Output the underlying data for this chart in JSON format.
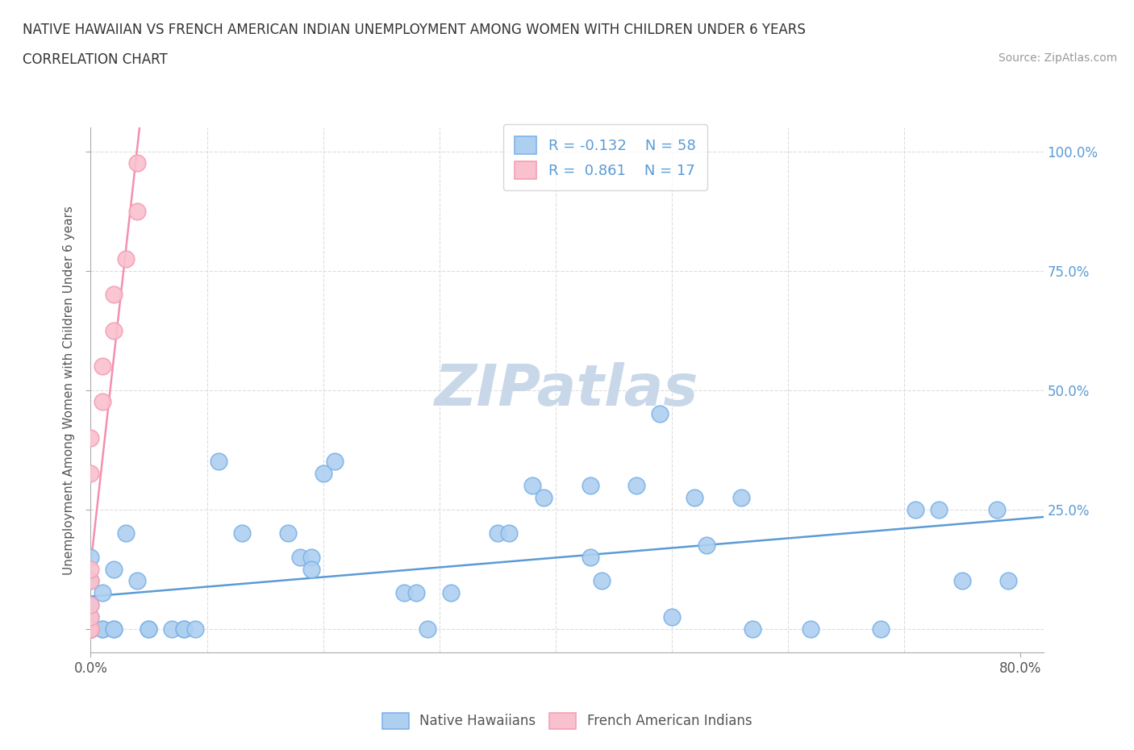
{
  "title_line1": "NATIVE HAWAIIAN VS FRENCH AMERICAN INDIAN UNEMPLOYMENT AMONG WOMEN WITH CHILDREN UNDER 6 YEARS",
  "title_line2": "CORRELATION CHART",
  "source_text": "Source: ZipAtlas.com",
  "ylabel": "Unemployment Among Women with Children Under 6 years",
  "watermark": "ZIPatlas",
  "blue_color": "#7EB3E8",
  "pink_color": "#F4A0B5",
  "blue_fill": "#AED0F0",
  "pink_fill": "#F9C0CE",
  "blue_r": -0.132,
  "blue_n": 58,
  "pink_r": 0.861,
  "pink_n": 17,
  "blue_scatter_x": [
    0.0,
    0.0,
    0.0,
    0.0,
    0.0,
    0.0,
    0.0,
    0.0,
    0.0,
    0.0,
    0.0,
    0.01,
    0.01,
    0.01,
    0.02,
    0.02,
    0.02,
    0.03,
    0.04,
    0.05,
    0.05,
    0.07,
    0.08,
    0.08,
    0.09,
    0.11,
    0.13,
    0.17,
    0.18,
    0.19,
    0.19,
    0.2,
    0.21,
    0.27,
    0.28,
    0.29,
    0.31,
    0.35,
    0.36,
    0.38,
    0.39,
    0.43,
    0.43,
    0.44,
    0.47,
    0.49,
    0.5,
    0.52,
    0.53,
    0.56,
    0.57,
    0.62,
    0.68,
    0.71,
    0.73,
    0.75,
    0.78,
    0.79
  ],
  "blue_scatter_y": [
    0.0,
    0.0,
    0.0,
    0.0,
    0.0,
    0.0,
    0.0,
    0.01,
    0.02,
    0.04,
    0.06,
    0.0,
    0.0,
    0.03,
    0.0,
    0.0,
    0.05,
    0.08,
    0.04,
    0.0,
    0.0,
    0.0,
    0.0,
    0.0,
    0.0,
    0.14,
    0.08,
    0.08,
    0.06,
    0.06,
    0.05,
    0.13,
    0.14,
    0.03,
    0.03,
    0.0,
    0.03,
    0.08,
    0.08,
    0.12,
    0.11,
    0.06,
    0.12,
    0.04,
    0.12,
    0.18,
    0.01,
    0.11,
    0.07,
    0.11,
    0.0,
    0.0,
    0.0,
    0.1,
    0.1,
    0.04,
    0.1,
    0.04
  ],
  "pink_scatter_x": [
    0.0,
    0.0,
    0.0,
    0.0,
    0.0,
    0.0,
    0.0,
    0.0,
    0.0,
    0.0,
    0.01,
    0.01,
    0.02,
    0.02,
    0.03,
    0.04,
    0.04
  ],
  "pink_scatter_y": [
    0.0,
    0.0,
    0.0,
    0.0,
    0.01,
    0.02,
    0.04,
    0.05,
    0.13,
    0.16,
    0.19,
    0.22,
    0.25,
    0.28,
    0.31,
    0.35,
    0.39
  ],
  "xlim": [
    0.0,
    0.82
  ],
  "ylim": [
    -0.02,
    0.42
  ],
  "yticks": [
    0.0,
    0.1,
    0.2,
    0.3,
    0.4
  ],
  "ytick_labels_right": [
    "",
    "25.0%",
    "50.0%",
    "75.0%",
    "100.0%"
  ],
  "xticks": [
    0.0,
    0.8
  ],
  "xtick_labels": [
    "0.0%",
    "80.0%"
  ],
  "grid_color": "#DDDDDD",
  "trendline_blue_color": "#5B9BD5",
  "trendline_pink_color": "#F48FB1",
  "fig_bg": "#FFFFFF",
  "watermark_color": "#C8D8E8",
  "title_color": "#333333",
  "label_color": "#555555",
  "tick_color": "#5B9BD5"
}
